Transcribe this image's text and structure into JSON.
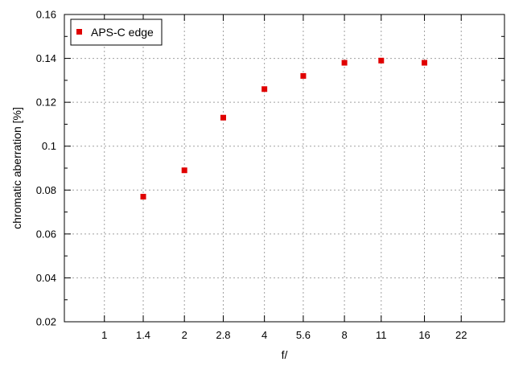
{
  "chart_data": {
    "type": "scatter",
    "title": "",
    "xlabel": "f/",
    "ylabel": "chromatic aberration [%]",
    "x_tick_labels": [
      "1",
      "1.4",
      "2",
      "2.8",
      "4",
      "5.6",
      "8",
      "11",
      "16",
      "22"
    ],
    "x_scale": "log2",
    "xlim": [
      0.707,
      32
    ],
    "ylim": [
      0.02,
      0.16
    ],
    "y_ticks": [
      0.02,
      0.04,
      0.06,
      0.08,
      0.1,
      0.12,
      0.14,
      0.16
    ],
    "y_tick_labels": [
      "0.02",
      "0.04",
      "0.06",
      "0.08",
      "0.1",
      "0.12",
      "0.14",
      "0.16"
    ],
    "grid": true,
    "legend_position": "top-left",
    "series": [
      {
        "name": "APS-C edge",
        "color": "#e00000",
        "marker": "square",
        "x": [
          1.4,
          2,
          2.8,
          4,
          5.6,
          8,
          11,
          16
        ],
        "y": [
          0.077,
          0.089,
          0.113,
          0.126,
          0.132,
          0.138,
          0.139,
          0.138
        ]
      }
    ]
  }
}
